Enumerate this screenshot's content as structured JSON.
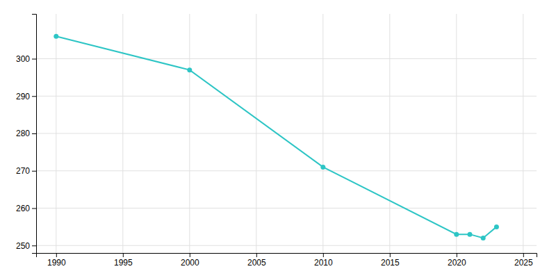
{
  "chart_data": {
    "type": "line",
    "x": [
      1990,
      2000,
      2010,
      2020,
      2021,
      2022,
      2023
    ],
    "values": [
      306,
      297,
      271,
      253,
      253,
      252,
      255
    ],
    "color": "#2DC5C5",
    "marker": "circle",
    "xlim": [
      1988.5,
      2026
    ],
    "ylim": [
      248,
      312
    ],
    "xticks": [
      1990,
      1995,
      2000,
      2005,
      2010,
      2015,
      2020,
      2025
    ],
    "yticks": [
      250,
      260,
      270,
      280,
      290,
      300
    ],
    "grid": true
  }
}
